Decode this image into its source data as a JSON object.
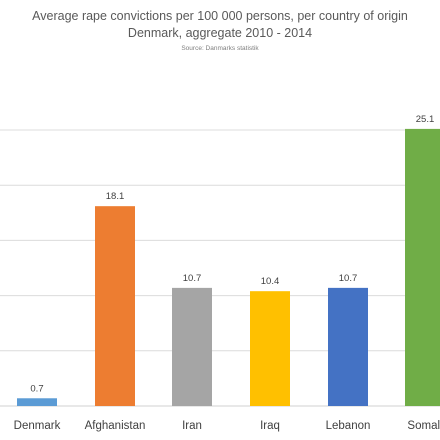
{
  "chart_data": {
    "type": "bar",
    "title": "Average rape convictions per 100 000 persons, per country of origin",
    "subtitle": "Denmark, aggregate 2010 - 2014",
    "source": "Source: Danmarks statistik",
    "categories": [
      "Denmark",
      "Afghanistan",
      "Iran",
      "Iraq",
      "Lebanon",
      "Somali"
    ],
    "values": [
      0.7,
      18.1,
      10.7,
      10.4,
      10.7,
      25.1
    ],
    "data_labels": [
      "0.7",
      "18.1",
      "10.7",
      "10.4",
      "10.7",
      "25.1"
    ],
    "colors": [
      "#5b9bd5",
      "#ed7d31",
      "#a5a5a5",
      "#ffc000",
      "#4472c4",
      "#70ad47"
    ],
    "ylim": [
      0,
      25
    ],
    "grid": true,
    "xlabel": "",
    "ylabel": ""
  }
}
